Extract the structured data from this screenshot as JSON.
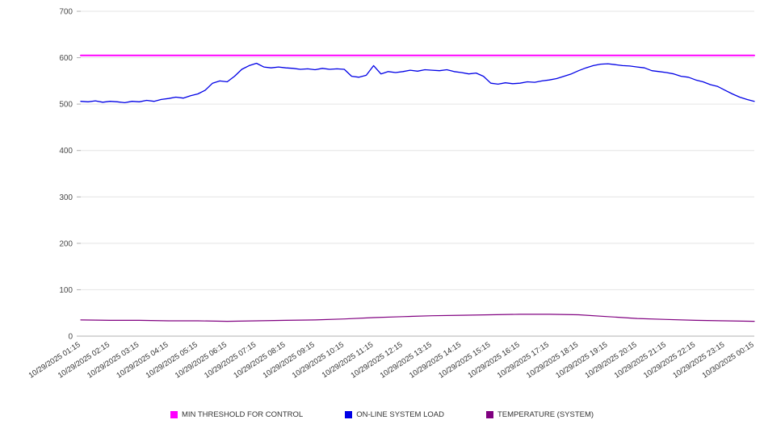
{
  "chart_data": {
    "type": "line",
    "title": "",
    "xlabel": "",
    "ylabel": "",
    "ylim": [
      0,
      700
    ],
    "y_ticks": [
      0,
      100,
      200,
      300,
      400,
      500,
      600,
      700
    ],
    "grid": true,
    "legend_position": "bottom",
    "x_labels": [
      "10/29/2025 01:15",
      "10/29/2025 02:15",
      "10/29/2025 03:15",
      "10/29/2025 04:15",
      "10/29/2025 05:15",
      "10/29/2025 06:15",
      "10/29/2025 07:15",
      "10/29/2025 08:15",
      "10/29/2025 09:15",
      "10/29/2025 10:15",
      "10/29/2025 11:15",
      "10/29/2025 12:15",
      "10/29/2025 13:15",
      "10/29/2025 14:15",
      "10/29/2025 15:15",
      "10/29/2025 16:15",
      "10/29/2025 17:15",
      "10/29/2025 18:15",
      "10/29/2025 19:15",
      "10/29/2025 20:15",
      "10/29/2025 21:15",
      "10/29/2025 22:15",
      "10/29/2025 23:15",
      "10/30/2025 00:15"
    ],
    "series": [
      {
        "name": "MIN THRESHOLD FOR CONTROL",
        "color": "#ff00ff",
        "stroke_width": 2,
        "values": [
          605,
          605
        ]
      },
      {
        "name": "ON-LINE SYSTEM LOAD",
        "color": "#0000e6",
        "stroke_width": 1.3,
        "values": [
          506,
          505,
          507,
          504,
          506,
          505,
          503,
          506,
          505,
          508,
          506,
          510,
          512,
          515,
          513,
          518,
          522,
          530,
          545,
          550,
          548,
          560,
          575,
          583,
          588,
          580,
          578,
          580,
          578,
          577,
          575,
          576,
          574,
          577,
          575,
          576,
          575,
          560,
          558,
          562,
          583,
          565,
          570,
          568,
          570,
          573,
          571,
          574,
          573,
          572,
          574,
          570,
          568,
          565,
          567,
          560,
          545,
          543,
          546,
          544,
          545,
          548,
          547,
          550,
          552,
          555,
          560,
          565,
          572,
          578,
          583,
          586,
          587,
          585,
          583,
          582,
          580,
          578,
          572,
          570,
          568,
          565,
          560,
          558,
          552,
          548,
          542,
          538,
          530,
          522,
          515,
          510,
          506
        ]
      },
      {
        "name": "TEMPERATURE (SYSTEM)",
        "color": "#800080",
        "stroke_width": 1.2,
        "values": [
          35,
          34,
          34,
          33,
          33,
          32,
          33,
          34,
          35,
          37,
          40,
          42,
          44,
          45,
          46,
          47,
          47,
          46,
          42,
          38,
          36,
          34,
          33,
          32
        ]
      }
    ]
  }
}
